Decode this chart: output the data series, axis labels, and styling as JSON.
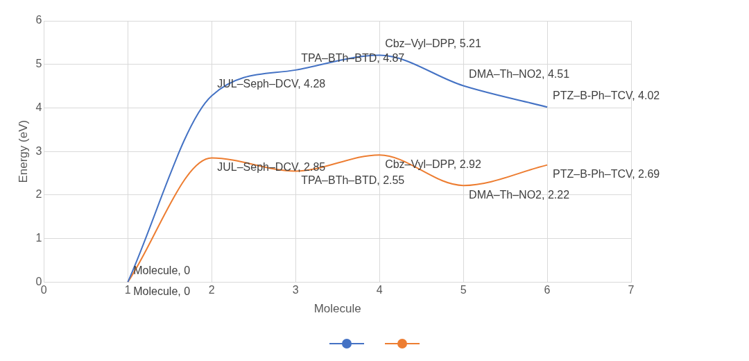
{
  "chart_data": {
    "type": "line",
    "xlabel": "Molecule",
    "ylabel": "Energy (eV)",
    "xlim": [
      0,
      7
    ],
    "xticks": [
      0,
      1,
      2,
      3,
      4,
      5,
      6,
      7
    ],
    "ylim": [
      0,
      6
    ],
    "yticks": [
      0,
      1,
      2,
      3,
      4,
      5,
      6
    ],
    "grid": true,
    "marker": "none",
    "line_style": "solid",
    "series": [
      {
        "color": "#4472c4",
        "x": [
          1,
          2,
          3,
          4,
          5,
          6
        ],
        "values": [
          0,
          4.28,
          4.87,
          5.21,
          4.51,
          4.02
        ],
        "value_labels": [
          "Molecule, 0",
          "JUL–Seph–DCV, 4.28",
          "TPA–BTh–BTD, 4.87",
          "Cbz–Vyl–DPP, 5.21",
          "DMA–Th–NO2, 4.51",
          "PTZ–B-Ph–TCV, 4.02"
        ]
      },
      {
        "color": "#ed7d31",
        "x": [
          1,
          2,
          3,
          4,
          5,
          6
        ],
        "values": [
          0,
          2.85,
          2.55,
          2.92,
          2.22,
          2.69
        ],
        "value_labels": [
          "Molecule, 0",
          "JUL–Seph–DCV, 2.85",
          "TPA–BTh–BTD, 2.55",
          "Cbz–Vyl–DPP, 2.92",
          "DMA–Th–NO2, 2.22",
          "PTZ–B-Ph–TCV, 2.69"
        ]
      }
    ]
  }
}
